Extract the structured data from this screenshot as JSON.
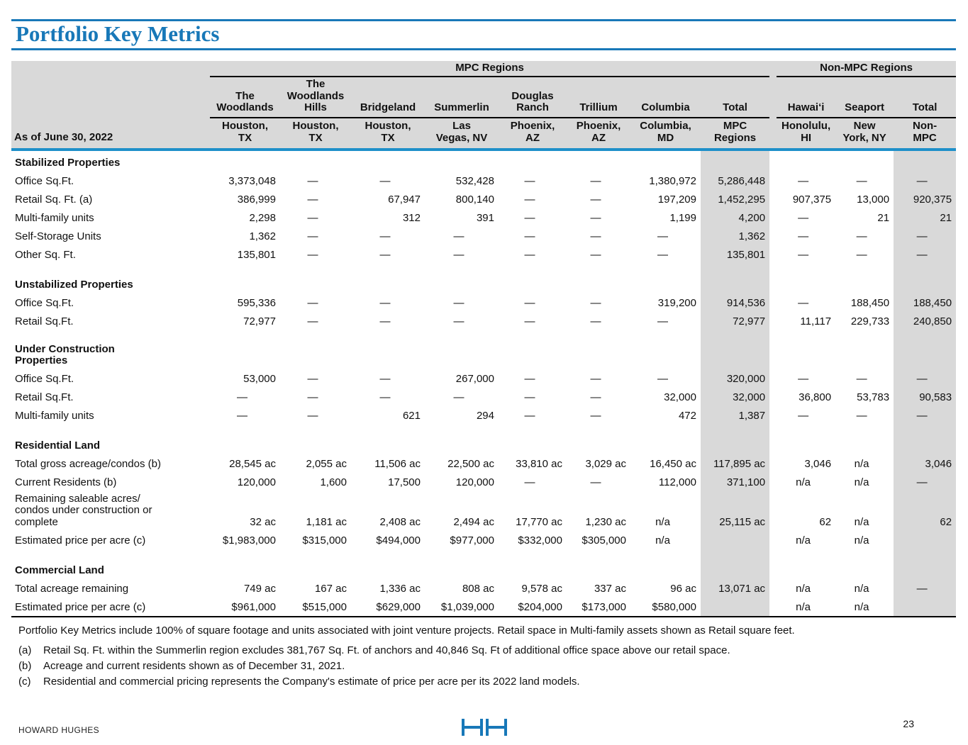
{
  "title": "Portfolio Key Metrics",
  "as_of_label": "As of June 30, 2022",
  "groups": {
    "mpc": "MPC Regions",
    "non_mpc": "Non-MPC Regions"
  },
  "colors": {
    "accent_blue": "#1878b8",
    "header_gray": "#d9d9d9",
    "divider_blue": "#1e8fc9"
  },
  "columns": [
    {
      "region": "The\nWoodlands",
      "city": "Houston,\nTX"
    },
    {
      "region": "The\nWoodlands\nHills",
      "city": "Houston,\nTX"
    },
    {
      "region": "Bridgeland",
      "city": "Houston,\nTX"
    },
    {
      "region": "Summerlin",
      "city": "Las\nVegas, NV"
    },
    {
      "region": "Douglas\nRanch",
      "city": "Phoenix,\nAZ"
    },
    {
      "region": "Trillium",
      "city": "Phoenix,\nAZ"
    },
    {
      "region": "Columbia",
      "city": "Columbia,\nMD"
    },
    {
      "region": "Total",
      "city": "MPC\nRegions"
    },
    {
      "region": "Hawai‘i",
      "city": "Honolulu,\nHI"
    },
    {
      "region": "Seaport",
      "city": "New\nYork, NY"
    },
    {
      "region": "Total",
      "city": "Non-\nMPC"
    }
  ],
  "sections": [
    {
      "name": "Stabilized Properties",
      "rows": [
        {
          "label": "Office Sq.Ft.",
          "values": [
            "3,373,048",
            "—",
            "—",
            "532,428",
            "—",
            "—",
            "1,380,972",
            "5,286,448",
            "—",
            "—",
            "—"
          ]
        },
        {
          "label": "Retail Sq. Ft. (a)",
          "values": [
            "386,999",
            "—",
            "67,947",
            "800,140",
            "—",
            "—",
            "197,209",
            "1,452,295",
            "907,375",
            "13,000",
            "920,375"
          ]
        },
        {
          "label": "Multi-family units",
          "values": [
            "2,298",
            "—",
            "312",
            "391",
            "—",
            "—",
            "1,199",
            "4,200",
            "—",
            "21",
            "21"
          ]
        },
        {
          "label": "Self-Storage Units",
          "values": [
            "1,362",
            "—",
            "—",
            "—",
            "—",
            "—",
            "—",
            "1,362",
            "—",
            "—",
            "—"
          ]
        },
        {
          "label": "Other Sq. Ft.",
          "values": [
            "135,801",
            "—",
            "—",
            "—",
            "—",
            "—",
            "—",
            "135,801",
            "—",
            "—",
            "—"
          ]
        }
      ]
    },
    {
      "name": "Unstabilized Properties",
      "rows": [
        {
          "label": "Office Sq.Ft.",
          "values": [
            "595,336",
            "—",
            "—",
            "—",
            "—",
            "—",
            "319,200",
            "914,536",
            "—",
            "188,450",
            "188,450"
          ]
        },
        {
          "label": "Retail Sq.Ft.",
          "values": [
            "72,977",
            "—",
            "—",
            "—",
            "—",
            "—",
            "—",
            "72,977",
            "11,117",
            "229,733",
            "240,850"
          ]
        }
      ]
    },
    {
      "name": "Under Construction\nProperties",
      "rows": [
        {
          "label": "Office Sq.Ft.",
          "values": [
            "53,000",
            "—",
            "—",
            "267,000",
            "—",
            "—",
            "—",
            "320,000",
            "—",
            "—",
            "—"
          ]
        },
        {
          "label": "Retail Sq.Ft.",
          "values": [
            "—",
            "—",
            "—",
            "—",
            "—",
            "—",
            "32,000",
            "32,000",
            "36,800",
            "53,783",
            "90,583"
          ]
        },
        {
          "label": "Multi-family units",
          "values": [
            "—",
            "—",
            "621",
            "294",
            "—",
            "—",
            "472",
            "1,387",
            "—",
            "—",
            "—"
          ]
        }
      ]
    },
    {
      "name": "Residential Land",
      "rows": [
        {
          "label": "Total gross acreage/condos (b)",
          "values": [
            "28,545 ac",
            "2,055 ac",
            "11,506 ac",
            "22,500 ac",
            "33,810 ac",
            "3,029 ac",
            "16,450 ac",
            "117,895 ac",
            "3,046",
            "n/a",
            "3,046"
          ]
        },
        {
          "label": "Current Residents (b)",
          "values": [
            "120,000",
            "1,600",
            "17,500",
            "120,000",
            "—",
            "—",
            "112,000",
            "371,100",
            "n/a",
            "n/a",
            "—"
          ]
        },
        {
          "label": "Remaining saleable acres/\ncondos under construction or\ncomplete",
          "values": [
            "32 ac",
            "1,181 ac",
            "2,408 ac",
            "2,494 ac",
            "17,770 ac",
            "1,230 ac",
            "n/a",
            "25,115 ac",
            "62",
            "n/a",
            "62"
          ]
        },
        {
          "label": "Estimated price per acre (c)",
          "values": [
            "$1,983,000",
            "$315,000",
            "$494,000",
            "$977,000",
            "$332,000",
            "$305,000",
            "n/a",
            "",
            "n/a",
            "n/a",
            ""
          ]
        }
      ]
    },
    {
      "name": "Commercial Land",
      "rows": [
        {
          "label": "Total acreage remaining",
          "values": [
            "749 ac",
            "167 ac",
            "1,336 ac",
            "808 ac",
            "9,578 ac",
            "337 ac",
            "96 ac",
            "13,071 ac",
            "n/a",
            "n/a",
            "—"
          ]
        },
        {
          "label": "Estimated price per acre (c)",
          "values": [
            "$961,000",
            "$515,000",
            "$629,000",
            "$1,039,000",
            "$204,000",
            "$173,000",
            "$580,000",
            "",
            "n/a",
            "n/a",
            ""
          ]
        }
      ]
    }
  ],
  "footnotes": {
    "intro": "Portfolio Key Metrics include 100% of square footage and units associated with joint venture projects. Retail space in Multi-family assets shown as Retail square feet.",
    "items": [
      {
        "marker": "(a)",
        "text": "Retail Sq. Ft. within the Summerlin region excludes 381,767 Sq. Ft. of anchors and 40,846 Sq. Ft of additional office space above our retail space."
      },
      {
        "marker": "(b)",
        "text": "Acreage and current residents shown as of December 31, 2021."
      },
      {
        "marker": "(c)",
        "text": "Residential and commercial pricing represents the Company's estimate of price per acre per its 2022 land models."
      }
    ]
  },
  "footer": {
    "company": "HOWARD HUGHES",
    "page": "23"
  }
}
